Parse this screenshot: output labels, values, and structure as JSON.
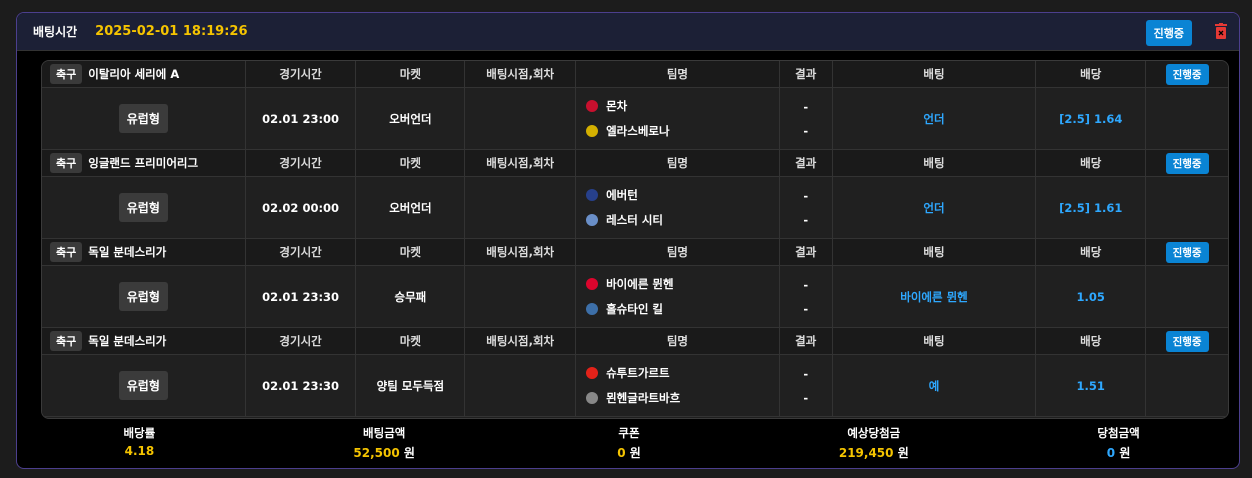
{
  "header": {
    "label": "배팅시간",
    "datetime": "2025-02-01 18:19:26",
    "status": "진행중",
    "delete_icon": "trash-icon",
    "accent": "#0a84d4"
  },
  "columns": [
    "경기시간",
    "마켓",
    "배팅시점,회차",
    "팀명",
    "결과",
    "배팅",
    "배당"
  ],
  "bets": [
    {
      "sport": "축구",
      "league": "이탈리아 세리에 A",
      "status": "진행중",
      "type": "유럽형",
      "time": "02.01 23:00",
      "market": "오버언더",
      "point": "",
      "home": "몬차",
      "away": "엘라스베로나",
      "home_result": "-",
      "away_result": "-",
      "pick": "언더",
      "odds": "[2.5] 1.64",
      "home_logo": "#c8102e",
      "away_logo": "#d4b000"
    },
    {
      "sport": "축구",
      "league": "잉글랜드 프리미어리그",
      "status": "진행중",
      "type": "유럽형",
      "time": "02.02 00:00",
      "market": "오버언더",
      "point": "",
      "home": "에버턴",
      "away": "레스터 시티",
      "home_result": "-",
      "away_result": "-",
      "pick": "언더",
      "odds": "[2.5] 1.61",
      "home_logo": "#27408b",
      "away_logo": "#6a8fc8"
    },
    {
      "sport": "축구",
      "league": "독일 분데스리가",
      "status": "진행중",
      "type": "유럽형",
      "time": "02.01 23:30",
      "market": "승무패",
      "point": "",
      "home": "바이에른 뮌헨",
      "away": "홀슈타인 킬",
      "home_result": "-",
      "away_result": "-",
      "pick": "바이에른 뮌헨",
      "odds": "1.05",
      "home_logo": "#dc052d",
      "away_logo": "#3d6fa8"
    },
    {
      "sport": "축구",
      "league": "독일 분데스리가",
      "status": "진행중",
      "type": "유럽형",
      "time": "02.01 23:30",
      "market": "양팀 모두득점",
      "point": "",
      "home": "슈투트가르트",
      "away": "묀헨글라트바흐",
      "home_result": "-",
      "away_result": "-",
      "pick": "예",
      "odds": "1.51",
      "home_logo": "#e32219",
      "away_logo": "#888888"
    }
  ],
  "summary": [
    {
      "label": "배당률",
      "value": "4.18",
      "unit": "",
      "color": "y"
    },
    {
      "label": "배팅금액",
      "value": "52,500",
      "unit": "원",
      "color": "y"
    },
    {
      "label": "쿠폰",
      "value": "0",
      "unit": "원",
      "color": "y"
    },
    {
      "label": "예상당첨금",
      "value": "219,450",
      "unit": "원",
      "color": "y"
    },
    {
      "label": "당첨금액",
      "value": "0",
      "unit": "원",
      "color": "b"
    }
  ]
}
